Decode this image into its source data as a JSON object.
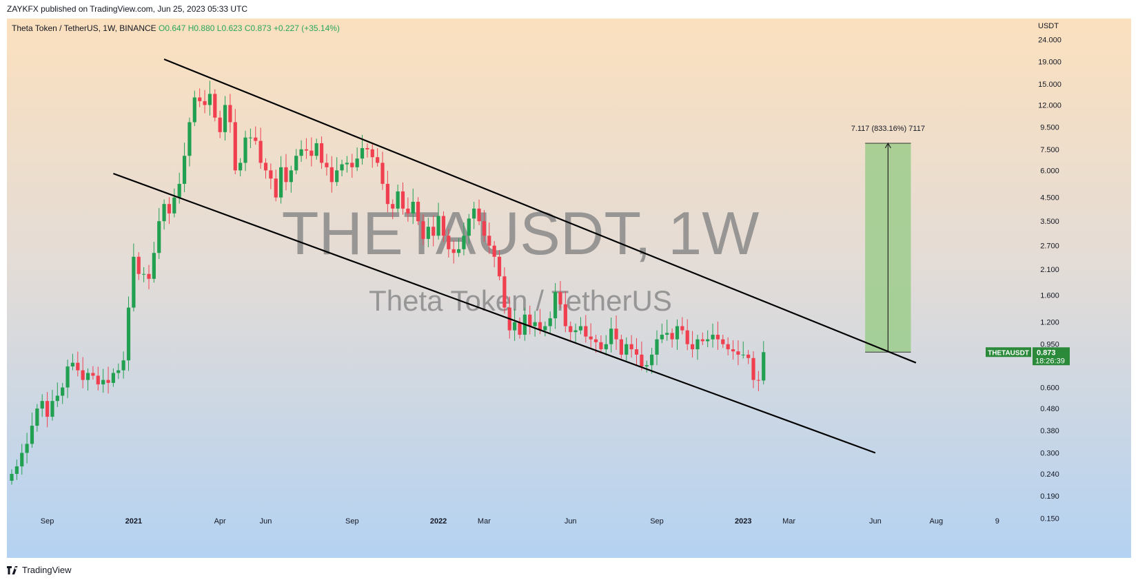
{
  "header": {
    "published_text": "ZAYKFX published on TradingView.com, Jun 25, 2023 05:33 UTC"
  },
  "symbol": {
    "description": "Theta Token / TetherUS, 1W, BINANCE",
    "open": "O0.647",
    "high": "H0.880",
    "low": "L0.623",
    "close": "C0.873",
    "change": "+0.227 (+35.14%)"
  },
  "watermark": {
    "line1": "THETAUSDT, 1W",
    "line2": "Theta Token / TetherUS"
  },
  "price_tag": {
    "name": "THETAUSDT",
    "price": "0.873",
    "countdown": "18:26:39"
  },
  "target_label": "7.117 (833.16%) 7117",
  "footer": {
    "brand": "TradingView"
  },
  "colors": {
    "up": "#22a052",
    "down": "#f04050",
    "target_zone": "#9ccc8c",
    "tag": "#2a8a3a"
  },
  "chart_data": {
    "type": "candlestick",
    "scale": "log",
    "currency_label": "USDT",
    "ylim": [
      0.13,
      30
    ],
    "y_ticks": [
      {
        "v": 24,
        "label": "24.000"
      },
      {
        "v": 19,
        "label": "19.000"
      },
      {
        "v": 15,
        "label": "15.000"
      },
      {
        "v": 12,
        "label": "12.000"
      },
      {
        "v": 9.5,
        "label": "9.500"
      },
      {
        "v": 7.5,
        "label": "7.500"
      },
      {
        "v": 6,
        "label": "6.000"
      },
      {
        "v": 4.5,
        "label": "4.500"
      },
      {
        "v": 3.5,
        "label": "3.500"
      },
      {
        "v": 2.7,
        "label": "2.700"
      },
      {
        "v": 2.1,
        "label": "2.100"
      },
      {
        "v": 1.6,
        "label": "1.600"
      },
      {
        "v": 1.2,
        "label": "1.200"
      },
      {
        "v": 0.95,
        "label": "0.950"
      },
      {
        "v": 0.6,
        "label": "0.600"
      },
      {
        "v": 0.48,
        "label": "0.480"
      },
      {
        "v": 0.38,
        "label": "0.380"
      },
      {
        "v": 0.3,
        "label": "0.300"
      },
      {
        "v": 0.24,
        "label": "0.240"
      },
      {
        "v": 0.19,
        "label": "0.190"
      },
      {
        "v": 0.15,
        "label": "0.150"
      }
    ],
    "x_ticks": [
      {
        "i": 7,
        "label": "Sep"
      },
      {
        "i": 24,
        "label": "2021"
      },
      {
        "i": 41,
        "label": "Apr"
      },
      {
        "i": 50,
        "label": "Jun"
      },
      {
        "i": 67,
        "label": "Sep"
      },
      {
        "i": 84,
        "label": "2022"
      },
      {
        "i": 93,
        "label": "Mar"
      },
      {
        "i": 110,
        "label": "Jun"
      },
      {
        "i": 127,
        "label": "Sep"
      },
      {
        "i": 144,
        "label": "2023"
      },
      {
        "i": 153,
        "label": "Mar"
      },
      {
        "i": 170,
        "label": "Jun"
      },
      {
        "i": 182,
        "label": "Aug"
      },
      {
        "i": 194,
        "label": "9"
      }
    ],
    "closes": [
      0.24,
      0.26,
      0.3,
      0.33,
      0.4,
      0.48,
      0.52,
      0.44,
      0.52,
      0.55,
      0.6,
      0.75,
      0.78,
      0.72,
      0.65,
      0.7,
      0.68,
      0.62,
      0.65,
      0.63,
      0.7,
      0.72,
      0.8,
      1.4,
      2.4,
      2.0,
      2.0,
      1.9,
      2.5,
      3.5,
      4.2,
      3.8,
      4.5,
      5.2,
      7.0,
      10.0,
      13.0,
      12.5,
      12.0,
      13.5,
      10.5,
      9.0,
      12.0,
      10.0,
      6.0,
      6.5,
      8.5,
      8.5,
      8.2,
      6.5,
      6.0,
      5.5,
      4.5,
      6.2,
      5.3,
      6.0,
      7.0,
      7.5,
      7.4,
      7.0,
      8.0,
      6.5,
      6.2,
      5.3,
      6.0,
      6.4,
      6.5,
      6.2,
      6.8,
      7.6,
      7.5,
      6.9,
      6.5,
      5.2,
      4.2,
      4.0,
      4.8,
      4.0,
      3.8,
      4.3,
      3.5,
      2.9,
      3.3,
      3.0,
      3.7,
      3.0,
      2.6,
      2.5,
      2.6,
      3.0,
      3.6,
      4.0,
      3.5,
      3.0,
      2.7,
      2.4,
      1.95,
      1.4,
      1.1,
      1.2,
      1.05,
      1.3,
      1.15,
      1.2,
      1.1,
      1.15,
      1.25,
      1.65,
      1.45,
      1.15,
      1.08,
      1.1,
      1.15,
      1.03,
      1.0,
      0.97,
      0.9,
      0.95,
      1.12,
      1.0,
      0.85,
      0.95,
      0.9,
      0.85,
      0.75,
      0.76,
      0.85,
      1.0,
      1.05,
      1.07,
      1.0,
      1.15,
      1.1,
      0.95,
      0.9,
      1.0,
      0.98,
      1.0,
      1.05,
      1.0,
      0.95,
      0.9,
      0.88,
      0.85,
      0.85,
      0.82,
      0.65,
      0.646,
      0.873
    ],
    "trendlines": [
      {
        "name": "upper",
        "from": {
          "i": 30,
          "v": 19.5
        },
        "to": {
          "i": 178,
          "v": 0.78
        }
      },
      {
        "name": "lower",
        "from": {
          "i": 20,
          "v": 5.8
        },
        "to": {
          "i": 170,
          "v": 0.3
        }
      }
    ],
    "target_zone": {
      "from_i": 168,
      "to_i": 177,
      "low": 0.873,
      "high": 8.0,
      "label_value": 7.117,
      "percent": 833.16
    }
  }
}
